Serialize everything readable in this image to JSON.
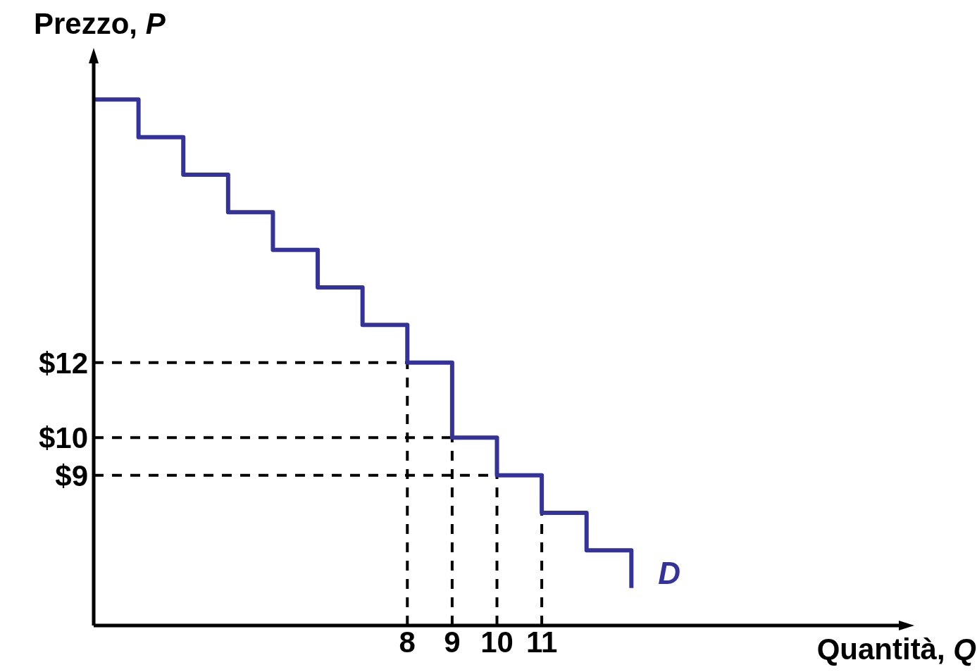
{
  "chart_data": {
    "type": "step",
    "xlabel": "Quantità, Q",
    "ylabel": "Prezzo, P",
    "x": [
      1,
      2,
      3,
      4,
      5,
      6,
      7,
      8,
      9,
      10,
      11,
      12,
      13
    ],
    "series": [
      {
        "name": "D",
        "color": "#333399",
        "values": [
          19,
          18,
          17,
          16,
          15,
          14,
          13,
          12,
          10,
          9,
          8,
          7,
          6
        ]
      }
    ],
    "xlim": [
      1,
      19
    ],
    "ylim": [
      5,
      20
    ],
    "xticks": [
      8,
      9,
      10,
      11
    ],
    "yticks": [
      {
        "value": 9,
        "label": "$9"
      },
      {
        "value": 10,
        "label": "$10"
      },
      {
        "value": 12,
        "label": "$12"
      }
    ],
    "ref_lines": [
      {
        "axis": "y",
        "value": 12,
        "label": null,
        "color": "#000000",
        "line_style": "dashed"
      },
      {
        "axis": "y",
        "value": 10,
        "label": null,
        "color": "#000000",
        "line_style": "dashed"
      },
      {
        "axis": "y",
        "value": 9,
        "label": null,
        "color": "#000000",
        "line_style": "dashed"
      },
      {
        "axis": "x",
        "value": 8,
        "label": null,
        "color": "#000000",
        "line_style": "dashed"
      },
      {
        "axis": "x",
        "value": 9,
        "label": null,
        "color": "#000000",
        "line_style": "dashed"
      },
      {
        "axis": "x",
        "value": 10,
        "label": null,
        "color": "#000000",
        "line_style": "dashed"
      },
      {
        "axis": "x",
        "value": 11,
        "label": null,
        "color": "#000000",
        "line_style": "dashed"
      }
    ],
    "grid": false,
    "legend": false,
    "marker": "none",
    "line_style": "solid"
  }
}
